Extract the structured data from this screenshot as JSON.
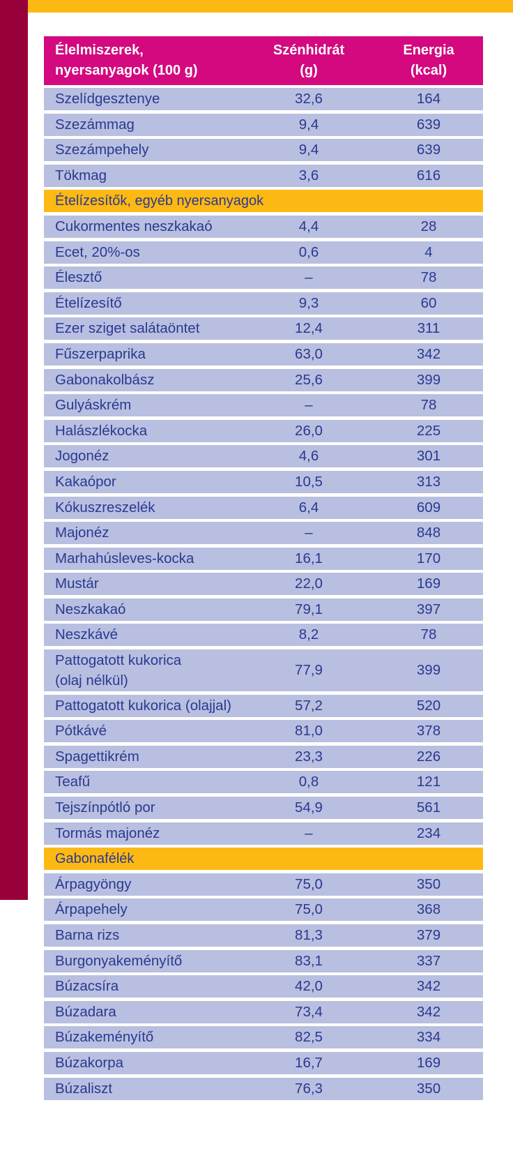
{
  "header": {
    "food_line1": "Élelmiszerek,",
    "food_line2": "nyersanyagok (100 g)",
    "carb_line1": "Szénhidrát",
    "carb_line2": "(g)",
    "energy_line1": "Energia",
    "energy_line2": "(kcal)"
  },
  "colors": {
    "header_bg": "#d4087f",
    "row_bg": "#b8bfe0",
    "category_bg": "#fdb913",
    "side_bar": "#98003a",
    "text": "#2b3990"
  },
  "rows": [
    {
      "type": "item",
      "name": "Szelídgesztenye",
      "carb": "32,6",
      "energy": "164"
    },
    {
      "type": "item",
      "name": "Szezámmag",
      "carb": "9,4",
      "energy": "639"
    },
    {
      "type": "item",
      "name": "Szezámpehely",
      "carb": "9,4",
      "energy": "639"
    },
    {
      "type": "item",
      "name": "Tökmag",
      "carb": "3,6",
      "energy": "616"
    },
    {
      "type": "category",
      "name": "Ételízesítők, egyéb nyersanyagok"
    },
    {
      "type": "item",
      "name": "Cukormentes neszkakaó",
      "carb": "4,4",
      "energy": "28"
    },
    {
      "type": "item",
      "name": "Ecet, 20%-os",
      "carb": "0,6",
      "energy": "4"
    },
    {
      "type": "item",
      "name": "Élesztő",
      "carb": "–",
      "energy": "78"
    },
    {
      "type": "item",
      "name": "Ételízesítő",
      "carb": "9,3",
      "energy": "60"
    },
    {
      "type": "item",
      "name": "Ezer sziget salátaöntet",
      "carb": "12,4",
      "energy": "311"
    },
    {
      "type": "item",
      "name": "Fűszerpaprika",
      "carb": "63,0",
      "energy": "342"
    },
    {
      "type": "item",
      "name": "Gabonakolbász",
      "carb": "25,6",
      "energy": "399"
    },
    {
      "type": "item",
      "name": "Gulyáskrém",
      "carb": "–",
      "energy": "78"
    },
    {
      "type": "item",
      "name": "Halászlékocka",
      "carb": "26,0",
      "energy": "225"
    },
    {
      "type": "item",
      "name": "Jogonéz",
      "carb": "4,6",
      "energy": "301"
    },
    {
      "type": "item",
      "name": "Kakaópor",
      "carb": "10,5",
      "energy": "313"
    },
    {
      "type": "item",
      "name": "Kókuszreszelék",
      "carb": "6,4",
      "energy": "609"
    },
    {
      "type": "item",
      "name": "Majonéz",
      "carb": "–",
      "energy": "848"
    },
    {
      "type": "item",
      "name": "Marhahúsleves-kocka",
      "carb": "16,1",
      "energy": "170"
    },
    {
      "type": "item",
      "name": "Mustár",
      "carb": "22,0",
      "energy": "169"
    },
    {
      "type": "item",
      "name": "Neszkakaó",
      "carb": "79,1",
      "energy": "397"
    },
    {
      "type": "item",
      "name": "Neszkávé",
      "carb": "8,2",
      "energy": "78"
    },
    {
      "type": "item",
      "name": "Pattogatott kukorica",
      "name2": "(olaj nélkül)",
      "carb": "77,9",
      "energy": "399"
    },
    {
      "type": "item",
      "name": "Pattogatott kukorica (olajjal)",
      "carb": "57,2",
      "energy": "520"
    },
    {
      "type": "item",
      "name": "Pótkávé",
      "carb": "81,0",
      "energy": "378"
    },
    {
      "type": "item",
      "name": "Spagettikrém",
      "carb": "23,3",
      "energy": "226"
    },
    {
      "type": "item",
      "name": "Teafű",
      "carb": "0,8",
      "energy": "121"
    },
    {
      "type": "item",
      "name": "Tejszínpótló por",
      "carb": "54,9",
      "energy": "561"
    },
    {
      "type": "item",
      "name": "Tormás majonéz",
      "carb": "–",
      "energy": "234"
    },
    {
      "type": "category",
      "name": "Gabonafélék"
    },
    {
      "type": "item",
      "name": "Árpagyöngy",
      "carb": "75,0",
      "energy": "350"
    },
    {
      "type": "item",
      "name": "Árpapehely",
      "carb": "75,0",
      "energy": "368"
    },
    {
      "type": "item",
      "name": "Barna rizs",
      "carb": "81,3",
      "energy": "379"
    },
    {
      "type": "item",
      "name": "Burgonyakeményítő",
      "carb": "83,1",
      "energy": "337"
    },
    {
      "type": "item",
      "name": "Búzacsíra",
      "carb": "42,0",
      "energy": "342"
    },
    {
      "type": "item",
      "name": "Búzadara",
      "carb": "73,4",
      "energy": "342"
    },
    {
      "type": "item",
      "name": "Búzakeményítő",
      "carb": "82,5",
      "energy": "334"
    },
    {
      "type": "item",
      "name": "Búzakorpa",
      "carb": "16,7",
      "energy": "169"
    },
    {
      "type": "item",
      "name": "Búzaliszt",
      "carb": "76,3",
      "energy": "350"
    }
  ]
}
